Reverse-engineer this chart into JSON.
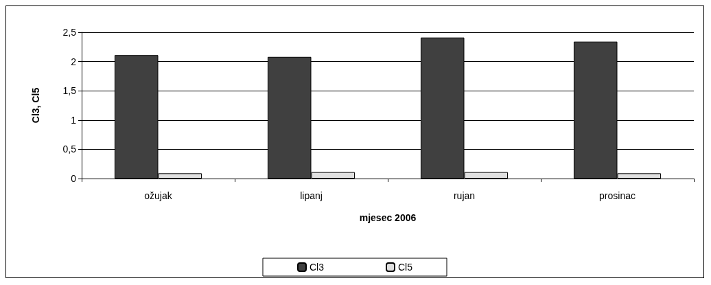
{
  "chart_data": {
    "type": "bar",
    "xlabel": "mjesec 2006",
    "ylabel": "Cl3, Cl5",
    "categories": [
      "ožujak",
      "lipanj",
      "rujan",
      "prosinac"
    ],
    "series": [
      {
        "name": "Cl3",
        "color": "#404040",
        "values": [
          2.11,
          2.08,
          2.41,
          2.34
        ]
      },
      {
        "name": "Cl5",
        "color": "#e0e0e0",
        "values": [
          0.09,
          0.11,
          0.11,
          0.09
        ]
      }
    ],
    "ylim": [
      0,
      2.5
    ],
    "yticks": [
      0,
      {
        "value": 0.5,
        "label": "0,5"
      },
      1,
      {
        "value": 1.5,
        "label": "1,5"
      },
      2,
      {
        "value": 2.5,
        "label": "2,5"
      }
    ],
    "grid": "y",
    "legend": "bottom"
  }
}
